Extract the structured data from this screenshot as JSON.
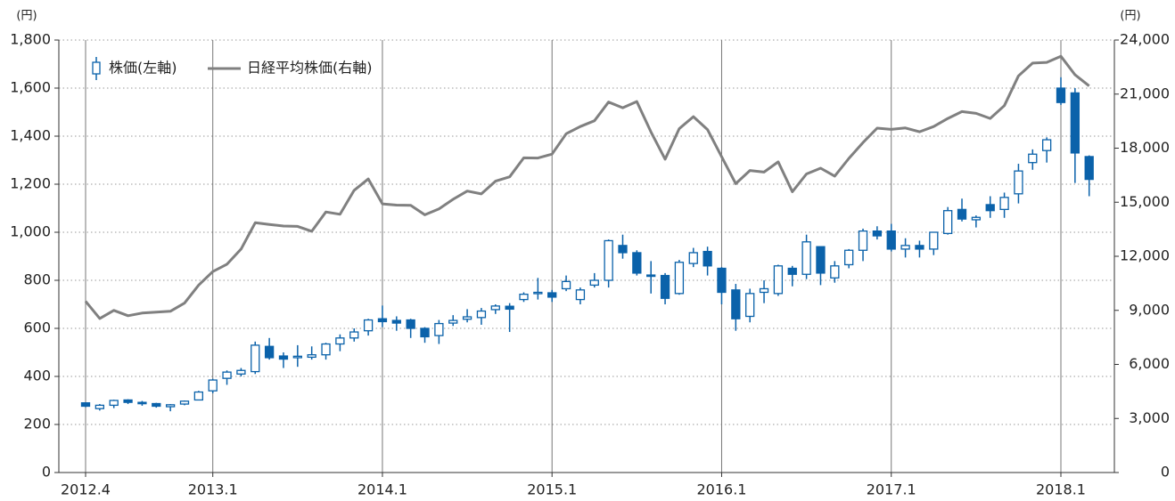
{
  "chart_data": {
    "type": "candlestick",
    "y_unit": "(円)",
    "y2_unit": "(円)",
    "categories": [
      "2012.4",
      null,
      null,
      null,
      null,
      null,
      null,
      null,
      null,
      "2013.1",
      null,
      null,
      null,
      null,
      null,
      null,
      null,
      null,
      null,
      null,
      null,
      "2014.1",
      null,
      null,
      null,
      null,
      null,
      null,
      null,
      null,
      null,
      null,
      null,
      "2015.1",
      null,
      null,
      null,
      null,
      null,
      null,
      null,
      null,
      null,
      null,
      null,
      "2016.1",
      null,
      null,
      null,
      null,
      null,
      null,
      null,
      null,
      null,
      null,
      null,
      "2017.1",
      null,
      null,
      null,
      null,
      null,
      null,
      null,
      null,
      null,
      null,
      null,
      "2018.1",
      null,
      null
    ],
    "series": [
      {
        "name": "株価(左軸)",
        "type": "candlestick",
        "color": "#0b62aa",
        "axis": "y",
        "open": [
          290,
          266,
          280,
          302,
          292,
          287,
          274,
          285,
          302,
          340,
          392,
          410,
          420,
          525,
          485,
          478,
          480,
          490,
          535,
          560,
          590,
          640,
          633,
          635,
          600,
          570,
          622,
          638,
          645,
          678,
          692,
          720,
          745,
          748,
          765,
          720,
          780,
          800,
          945,
          915,
          822,
          820,
          745,
          870,
          920,
          850,
          760,
          650,
          750,
          745,
          850,
          825,
          940,
          810,
          865,
          925,
          1005,
          1005,
          930,
          945,
          930,
          995,
          1095,
          1052,
          1115,
          1095,
          1160,
          1290,
          1340,
          1600,
          1580,
          1315
        ],
        "high": [
          292,
          285,
          303,
          305,
          298,
          290,
          285,
          300,
          340,
          390,
          425,
          435,
          545,
          560,
          500,
          530,
          525,
          540,
          575,
          600,
          640,
          695,
          650,
          640,
          605,
          635,
          655,
          680,
          685,
          700,
          705,
          750,
          810,
          760,
          820,
          770,
          830,
          970,
          990,
          925,
          880,
          830,
          885,
          935,
          940,
          855,
          785,
          765,
          800,
          865,
          860,
          990,
          940,
          880,
          930,
          1015,
          1025,
          1035,
          975,
          965,
          1000,
          1105,
          1140,
          1070,
          1150,
          1165,
          1285,
          1345,
          1395,
          1645,
          1600,
          1320
        ],
        "low": [
          272,
          258,
          268,
          285,
          278,
          270,
          255,
          280,
          300,
          330,
          365,
          400,
          410,
          470,
          435,
          440,
          470,
          470,
          505,
          545,
          570,
          605,
          590,
          560,
          540,
          535,
          610,
          625,
          615,
          660,
          585,
          710,
          720,
          710,
          755,
          700,
          770,
          770,
          890,
          820,
          745,
          700,
          740,
          855,
          820,
          700,
          590,
          625,
          705,
          735,
          775,
          805,
          780,
          790,
          850,
          880,
          970,
          920,
          895,
          895,
          905,
          990,
          1045,
          1020,
          1060,
          1060,
          1120,
          1260,
          1290,
          1530,
          1205,
          1150
        ],
        "close": [
          276,
          280,
          300,
          292,
          288,
          276,
          282,
          297,
          335,
          385,
          418,
          425,
          530,
          478,
          472,
          484,
          490,
          535,
          560,
          585,
          635,
          628,
          622,
          600,
          565,
          620,
          633,
          648,
          672,
          693,
          680,
          742,
          750,
          730,
          795,
          760,
          800,
          965,
          915,
          830,
          818,
          725,
          875,
          915,
          860,
          750,
          640,
          745,
          765,
          860,
          825,
          960,
          830,
          860,
          925,
          1005,
          985,
          930,
          945,
          930,
          1000,
          1090,
          1055,
          1062,
          1090,
          1145,
          1255,
          1325,
          1385,
          1540,
          1330,
          1220
        ]
      },
      {
        "name": "日経平均株価(右軸)",
        "type": "line",
        "color": "#808080",
        "axis": "y2",
        "values": [
          9500,
          8550,
          9000,
          8700,
          8850,
          8900,
          8950,
          9400,
          10400,
          11150,
          11560,
          12400,
          13860,
          13770,
          13680,
          13660,
          13390,
          14460,
          14330,
          15660,
          16290,
          14910,
          14840,
          14830,
          14300,
          14630,
          15160,
          15620,
          15460,
          16170,
          16410,
          17460,
          17450,
          17670,
          18800,
          19200,
          19520,
          20560,
          20240,
          20590,
          18900,
          17390,
          19080,
          19750,
          19030,
          17520,
          16030,
          16760,
          16670,
          17240,
          15580,
          16570,
          16890,
          16450,
          17430,
          18310,
          19110,
          19040,
          19120,
          18910,
          19200,
          19650,
          20030,
          19930,
          19650,
          20360,
          22010,
          22720,
          22760,
          23100,
          22070,
          21450
        ]
      }
    ],
    "ylim": [
      0,
      1800
    ],
    "yticks": [
      0,
      200,
      400,
      600,
      800,
      {
        "value": 1000,
        "label": "1,000"
      },
      {
        "value": 1200,
        "label": "1,200"
      },
      {
        "value": 1400,
        "label": "1,400"
      },
      {
        "value": 1600,
        "label": "1,600"
      },
      {
        "value": 1800,
        "label": "1,800"
      }
    ],
    "y2lim": [
      0,
      24000
    ],
    "y2ticks": [
      0,
      {
        "value": 3000,
        "label": "3,000"
      },
      {
        "value": 6000,
        "label": "6,000"
      },
      {
        "value": 9000,
        "label": "9,000"
      },
      {
        "value": 12000,
        "label": "12,000"
      },
      {
        "value": 15000,
        "label": "15,000"
      },
      {
        "value": 18000,
        "label": "18,000"
      },
      {
        "value": 21000,
        "label": "21,000"
      },
      {
        "value": 24000,
        "label": "24,000"
      }
    ],
    "grid": true,
    "legend": "top-left"
  }
}
